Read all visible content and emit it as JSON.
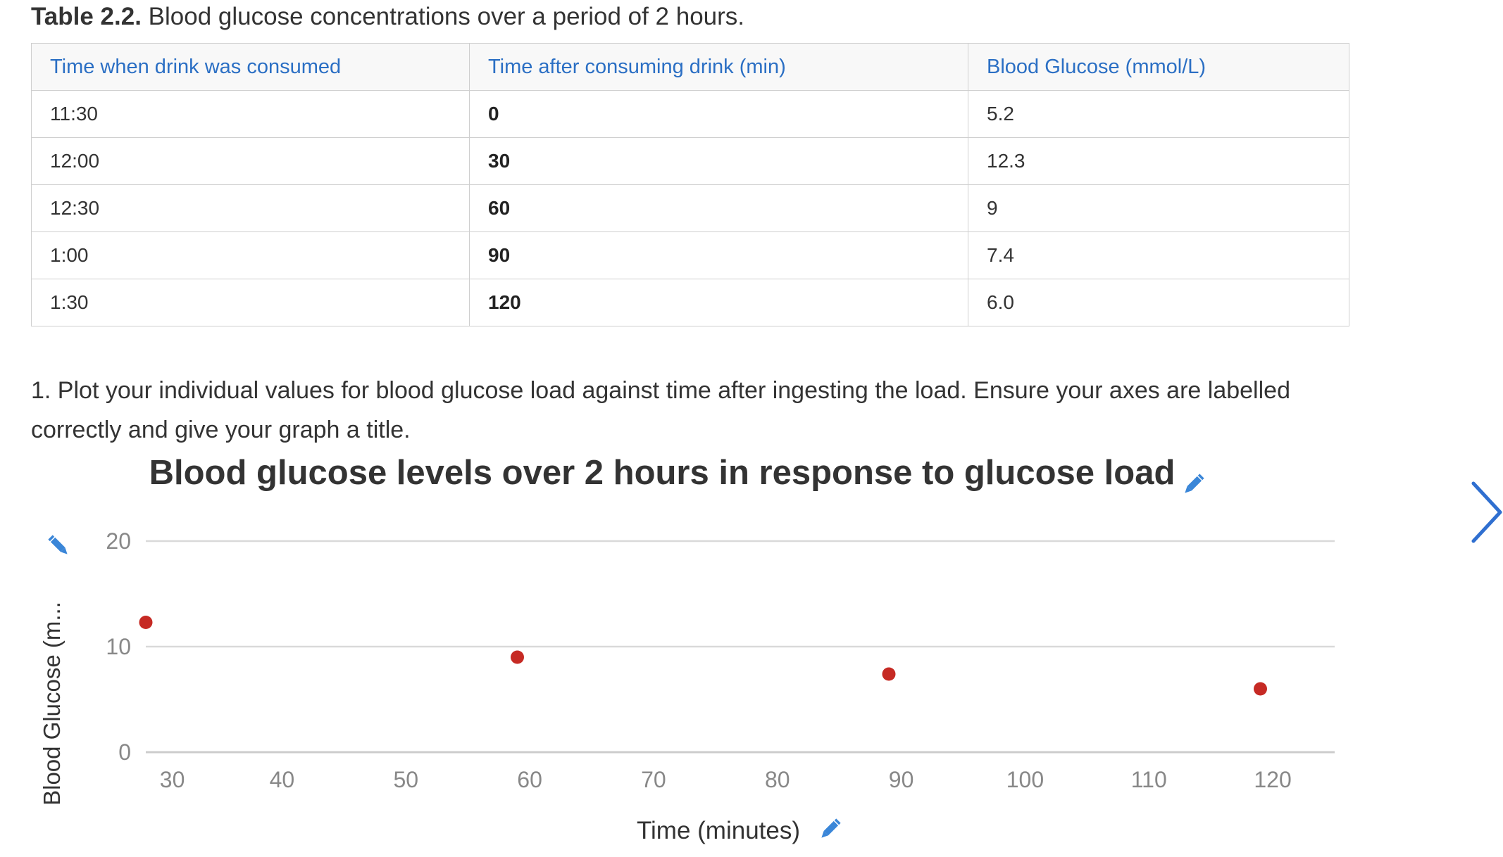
{
  "caption": {
    "label": "Table 2.2.",
    "text": "Blood glucose concentrations over a period of 2 hours."
  },
  "table": {
    "headers": [
      "Time when drink was consumed",
      "Time after consuming drink (min)",
      "Blood Glucose (mmol/L)"
    ],
    "rows": [
      [
        "11:30",
        "0",
        "5.2"
      ],
      [
        "12:00",
        "30",
        "12.3"
      ],
      [
        "12:30",
        "60",
        "9"
      ],
      [
        "1:00",
        "90",
        "7.4"
      ],
      [
        "1:30",
        "120",
        "6.0"
      ]
    ]
  },
  "prompt": "1. Plot your individual values for blood glucose load against time after ingesting the load.  Ensure your axes are labelled correctly and give your graph a title.",
  "chart_data": {
    "type": "scatter",
    "title": "Blood glucose levels over 2 hours in response to glucose load",
    "xlabel": "Time (minutes)",
    "ylabel": "Blood Glucose (m...",
    "x_ticks": [
      30,
      40,
      50,
      60,
      70,
      80,
      90,
      100,
      110,
      120
    ],
    "y_ticks": [
      0,
      10,
      20
    ],
    "xlim": [
      29,
      125
    ],
    "ylim": [
      0,
      20
    ],
    "grid": "horizontal",
    "series": [
      {
        "points": [
          [
            29,
            12.3
          ],
          [
            59,
            9
          ],
          [
            89,
            7.4
          ],
          [
            119,
            6.0
          ]
        ]
      }
    ]
  },
  "colors": {
    "header_text": "#2b6fc4",
    "point": "#c62a24",
    "edit_icon": "#3a86d8",
    "grid": "#d9d9d9",
    "next_arrow": "#2f6fd0"
  },
  "icons": {
    "edit": "pencil-icon",
    "next": "chevron-right-icon"
  }
}
